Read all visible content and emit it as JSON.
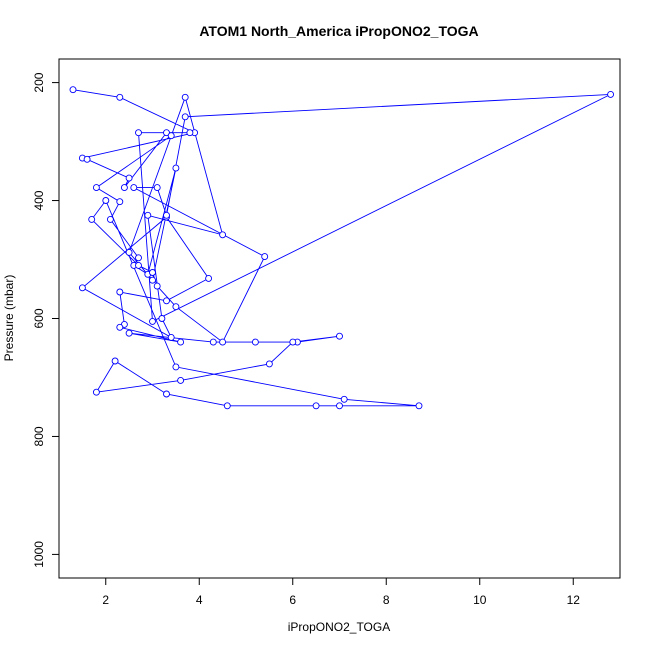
{
  "chart_data": {
    "type": "line",
    "title": "ATOM1 North_America iPropONO2_TOGA",
    "xlabel": "iPropONO2_TOGA",
    "ylabel": "Pressure (mbar)",
    "xlim": [
      1.0,
      13.0
    ],
    "ylim": [
      1040,
      160
    ],
    "y_reversed": true,
    "xticks": [
      2,
      4,
      6,
      8,
      10,
      12
    ],
    "yticks": [
      200,
      400,
      600,
      800,
      1000
    ],
    "grid": false,
    "line_color": "#0000ff",
    "marker": "open-circle",
    "x": [
      1.3,
      2.3,
      3.9,
      1.5,
      1.6,
      2.5,
      2.4,
      3.3,
      3.4,
      1.8,
      2.3,
      2.1,
      2.7,
      2.6,
      2.9,
      3.5,
      3.0,
      2.5,
      3.7,
      4.5,
      2.9,
      3.2,
      3.4,
      1.5,
      3.3,
      4.2,
      3.3,
      2.3,
      2.4,
      2.3,
      3.6,
      2.5,
      4.3,
      5.2,
      6.1,
      7.0,
      6.0,
      5.5,
      3.6,
      1.8,
      2.2,
      3.3,
      4.6,
      6.5,
      7.0,
      8.7,
      7.1,
      3.5,
      2.0,
      1.7,
      2.7,
      3.0,
      3.1,
      3.5,
      4.5,
      5.4,
      2.6,
      3.1,
      3.3,
      3.7,
      12.8,
      3.0,
      2.7,
      3.8
    ],
    "y": [
      212,
      225,
      285,
      328,
      330,
      362,
      378,
      285,
      290,
      378,
      402,
      432,
      497,
      510,
      525,
      345,
      535,
      488,
      225,
      458,
      425,
      600,
      632,
      548,
      428,
      532,
      570,
      555,
      610,
      615,
      640,
      625,
      640,
      640,
      640,
      630,
      640,
      677,
      705,
      725,
      672,
      728,
      748,
      748,
      748,
      748,
      737,
      682,
      400,
      432,
      510,
      522,
      545,
      580,
      640,
      495,
      378,
      378,
      425,
      258,
      220,
      605,
      285,
      285
    ]
  }
}
